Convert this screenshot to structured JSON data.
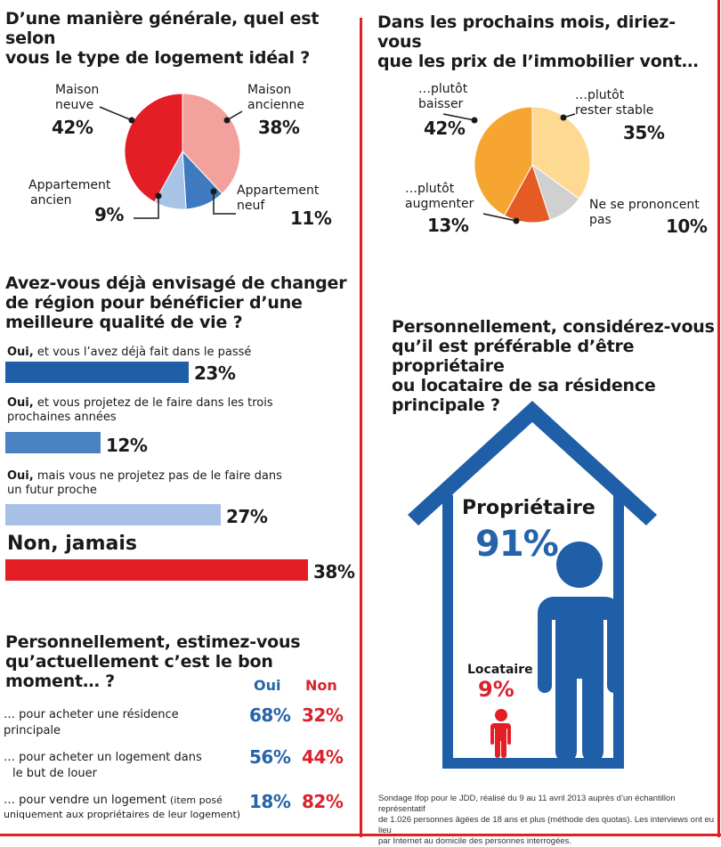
{
  "colors": {
    "red": "#e31e24",
    "blue_dark": "#1f5fa8",
    "blue_mid": "#4a82c4",
    "blue_light": "#a6c1e5",
    "pink": "#f3a19c",
    "orange": "#f6a630",
    "yellow": "#fdd992",
    "orange_dark": "#e55b24",
    "grey": "#d0d0d0"
  },
  "q1": {
    "title": "D'une manière générale, quel est selon vous le type de logement idéal ?",
    "title_l1": "D’une manière générale, quel est selon",
    "title_l2": "vous le type de logement idéal ?",
    "chart_data": {
      "type": "pie",
      "title": "D’une manière générale, quel est selon vous le type de logement idéal ?",
      "slices": [
        {
          "label": "Maison ancienne",
          "value": 38,
          "color": "#f3a19c"
        },
        {
          "label": "Appartement neuf",
          "value": 11,
          "color": "#3f79bf"
        },
        {
          "label": "Appartement ancien",
          "value": 9,
          "color": "#a9c3e6"
        },
        {
          "label": "Maison neuve",
          "value": 42,
          "color": "#e31e24"
        }
      ]
    },
    "labels": {
      "maison_neuve_l1": "Maison",
      "maison_neuve_l2": "neuve",
      "maison_neuve_pct": "42%",
      "maison_ancienne_l1": "Maison",
      "maison_ancienne_l2": "ancienne",
      "maison_ancienne_pct": "38%",
      "app_ancien_l1": "Appartement",
      "app_ancien_l2": "ancien",
      "app_ancien_pct": "9%",
      "app_neuf_l1": "Appartement",
      "app_neuf_l2": "neuf",
      "app_neuf_pct": "11%"
    }
  },
  "q2": {
    "title_l1": "Dans les prochains mois, diriez-vous",
    "title_l2": "que les prix de l’immobilier vont…",
    "chart_data": {
      "type": "pie",
      "title": "Dans les prochains mois, diriez-vous que les prix de l’immobilier vont…",
      "slices": [
        {
          "label": "…plutôt rester stable",
          "value": 35,
          "color": "#fdd992"
        },
        {
          "label": "Ne se prononcent pas",
          "value": 10,
          "color": "#d0d0d0"
        },
        {
          "label": "…plutôt augmenter",
          "value": 13,
          "color": "#e55b24"
        },
        {
          "label": "…plutôt baisser",
          "value": 42,
          "color": "#f6a630"
        }
      ]
    },
    "labels": {
      "baisser_l1": "…plutôt",
      "baisser_l2": "baisser",
      "baisser_pct": "42%",
      "stable_l1": "…plutôt",
      "stable_l2": "rester stable",
      "stable_pct": "35%",
      "augmenter_l1": "…plutôt",
      "augmenter_l2": "augmenter",
      "augmenter_pct": "13%",
      "nsp_l1": "Ne se prononcent",
      "nsp_l2": "pas",
      "nsp_pct": "10%"
    }
  },
  "q3": {
    "title_l1": "Avez-vous déjà envisagé de changer",
    "title_l2": "de région pour bénéficier d’une",
    "title_l3": "meilleure qualité de vie ?",
    "chart_data": {
      "type": "bar",
      "title": "Avez-vous déjà envisagé de changer de région pour bénéficier d’une meilleure qualité de vie ?",
      "categories": [
        "Oui, et vous l’avez déjà fait dans le passé",
        "Oui, et vous projetez de le faire dans les trois prochaines années",
        "Oui, mais vous ne projetez pas de le faire dans un futur proche",
        "Non, jamais"
      ],
      "values": [
        23,
        12,
        27,
        38
      ],
      "colors": [
        "#1f5fa8",
        "#4a82c4",
        "#a6c1e5",
        "#e31e24"
      ],
      "ylim": [
        0,
        38
      ]
    },
    "bars": [
      {
        "bold": "Oui,",
        "l1": " et vous l’avez déjà fait dans le passé",
        "l2": "",
        "pct": "23%"
      },
      {
        "bold": "Oui,",
        "l1": " et vous projetez de le faire dans les trois",
        "l2": "prochaines années",
        "pct": "12%"
      },
      {
        "bold": "Oui,",
        "l1": " mais vous ne projetez pas de le faire dans",
        "l2": "un futur proche",
        "pct": "27%"
      },
      {
        "bold": "Non, jamais",
        "l1": "",
        "l2": "",
        "pct": "38%"
      }
    ]
  },
  "q4": {
    "title_l1": "Personnellement, estimez-vous",
    "title_l2": "qu’actuellement c’est le bon moment… ?",
    "col_oui": "Oui",
    "col_non": "Non",
    "chart_data": {
      "type": "table",
      "columns": [
        "Oui",
        "Non"
      ],
      "rows": [
        {
          "label": "… pour acheter une résidence principale",
          "oui": "68%",
          "non": "32%"
        },
        {
          "label": "… pour acheter un logement dans le but de louer",
          "oui": "56%",
          "non": "44%"
        },
        {
          "label": "… pour vendre un logement (item posé uniquement aux propriétaires de leur logement)",
          "oui": "18%",
          "non": "82%"
        }
      ]
    },
    "rows": [
      {
        "l1": "… pour acheter une résidence",
        "l2": "principale",
        "oui": "68%",
        "non": "32%"
      },
      {
        "l1": "… pour acheter un logement dans",
        "l2": "le but de louer",
        "oui": "56%",
        "non": "44%"
      },
      {
        "l1": "… pour vendre un logement ",
        "l1_small": "(item posé",
        "l2": "uniquement aux propriétaires de leur logement)",
        "oui": "18%",
        "non": "82%"
      }
    ]
  },
  "q5": {
    "title_l1": "Personnellement, considérez-vous",
    "title_l2": "qu’il est préférable d’être propriétaire",
    "title_l3": "ou locataire de sa résidence",
    "title_l4": "principale ?",
    "chart_data": {
      "type": "pictogram",
      "title": "Personnellement, considérez-vous qu’il est préférable d’être propriétaire ou locataire de sa résidence principale ?",
      "categories": [
        "Propriétaire",
        "Locataire"
      ],
      "values": [
        91,
        9
      ]
    },
    "proprietaire_label": "Propriétaire",
    "proprietaire_pct": "91%",
    "locataire_label": "Locataire",
    "locataire_pct": "9%"
  },
  "footnote": {
    "l1": "Sondage Ifop pour le JDD, réalisé du 9 au 11 avril 2013 auprès d’un échantillon représentatif",
    "l2": "de 1.026 personnes âgées de 18 ans et plus (méthode des quotas). Les interviews ont eu lieu",
    "l3": "par Internet au domicile des personnes interrogées."
  }
}
